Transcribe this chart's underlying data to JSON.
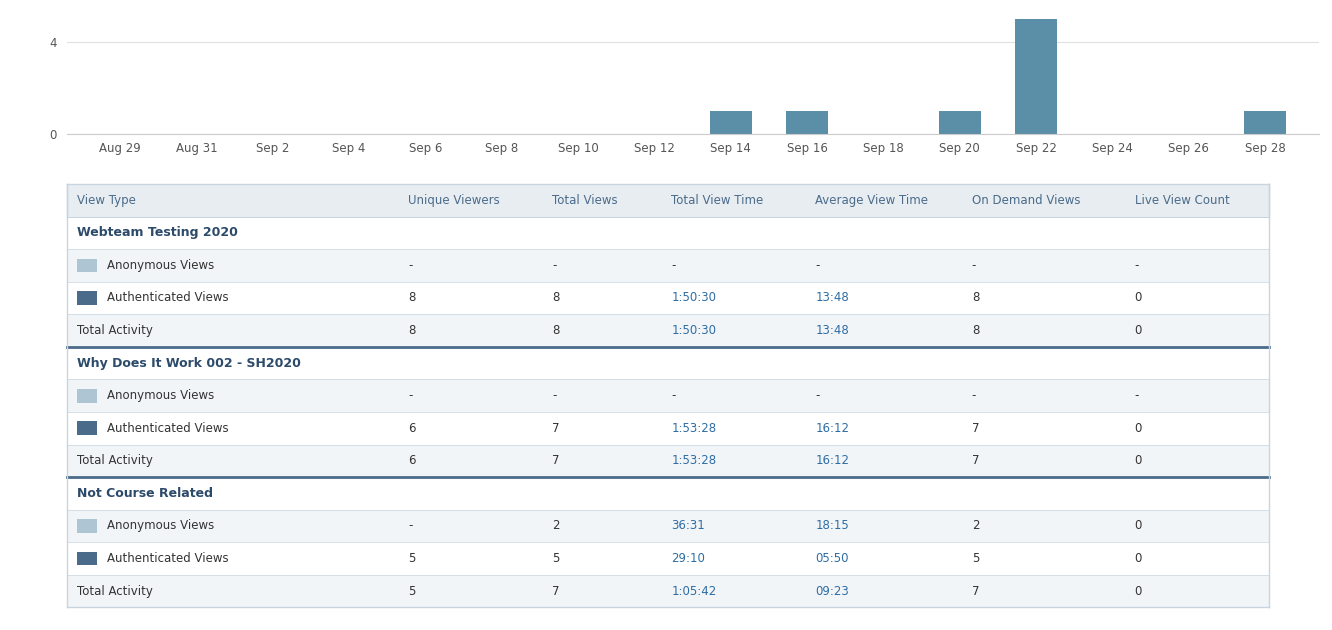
{
  "bar_dates": [
    "Aug 29",
    "Aug 31",
    "Sep 2",
    "Sep 4",
    "Sep 6",
    "Sep 8",
    "Sep 10",
    "Sep 12",
    "Sep 14",
    "Sep 16",
    "Sep 18",
    "Sep 20",
    "Sep 22",
    "Sep 24",
    "Sep 26",
    "Sep 28"
  ],
  "bar_values": [
    0,
    0,
    0,
    0,
    0,
    0,
    0,
    0,
    1,
    1,
    0,
    1,
    5,
    0,
    0,
    1
  ],
  "bar_color": "#5b8fa8",
  "ylim": [
    0,
    5
  ],
  "yticks": [
    0,
    4
  ],
  "chart_bg": "#ffffff",
  "table_header_bg": "#e8edf2",
  "table_header_text": "#4a6b8a",
  "table_border_color": "#c8d4e0",
  "table_section_border": "#4a6b8a",
  "col_headers": [
    "View Type",
    "Unique Viewers",
    "Total Views",
    "Total View Time",
    "Average View Time",
    "On Demand Views",
    "Live View Count"
  ],
  "col_widths": [
    0.265,
    0.115,
    0.095,
    0.115,
    0.125,
    0.13,
    0.115
  ],
  "sections": [
    {
      "title": "Webteam Testing 2020",
      "rows": [
        {
          "type": "anonymous",
          "label": "Anonymous Views",
          "unique_viewers": "-",
          "total_views": "-",
          "total_view_time": "-",
          "avg_view_time": "-",
          "on_demand": "-",
          "live_count": "-"
        },
        {
          "type": "authenticated",
          "label": "Authenticated Views",
          "unique_viewers": "8",
          "total_views": "8",
          "total_view_time": "1:50:30",
          "avg_view_time": "13:48",
          "on_demand": "8",
          "live_count": "0"
        },
        {
          "type": "total",
          "label": "Total Activity",
          "unique_viewers": "8",
          "total_views": "8",
          "total_view_time": "1:50:30",
          "avg_view_time": "13:48",
          "on_demand": "8",
          "live_count": "0"
        }
      ]
    },
    {
      "title": "Why Does It Work 002 - SH2020",
      "rows": [
        {
          "type": "anonymous",
          "label": "Anonymous Views",
          "unique_viewers": "-",
          "total_views": "-",
          "total_view_time": "-",
          "avg_view_time": "-",
          "on_demand": "-",
          "live_count": "-"
        },
        {
          "type": "authenticated",
          "label": "Authenticated Views",
          "unique_viewers": "6",
          "total_views": "7",
          "total_view_time": "1:53:28",
          "avg_view_time": "16:12",
          "on_demand": "7",
          "live_count": "0"
        },
        {
          "type": "total",
          "label": "Total Activity",
          "unique_viewers": "6",
          "total_views": "7",
          "total_view_time": "1:53:28",
          "avg_view_time": "16:12",
          "on_demand": "7",
          "live_count": "0"
        }
      ]
    },
    {
      "title": "Not Course Related",
      "rows": [
        {
          "type": "anonymous",
          "label": "Anonymous Views",
          "unique_viewers": "-",
          "total_views": "2",
          "total_view_time": "36:31",
          "avg_view_time": "18:15",
          "on_demand": "2",
          "live_count": "0"
        },
        {
          "type": "authenticated",
          "label": "Authenticated Views",
          "unique_viewers": "5",
          "total_views": "5",
          "total_view_time": "29:10",
          "avg_view_time": "05:50",
          "on_demand": "5",
          "live_count": "0"
        },
        {
          "type": "total",
          "label": "Total Activity",
          "unique_viewers": "5",
          "total_views": "7",
          "total_view_time": "1:05:42",
          "avg_view_time": "09:23",
          "on_demand": "7",
          "live_count": "0"
        }
      ]
    }
  ],
  "anon_color": "#aec6d4",
  "auth_color": "#4a6b8a",
  "link_color": "#2e6da4",
  "text_dark": "#2c4a6a",
  "text_normal": "#333333",
  "total_text": "#333333"
}
